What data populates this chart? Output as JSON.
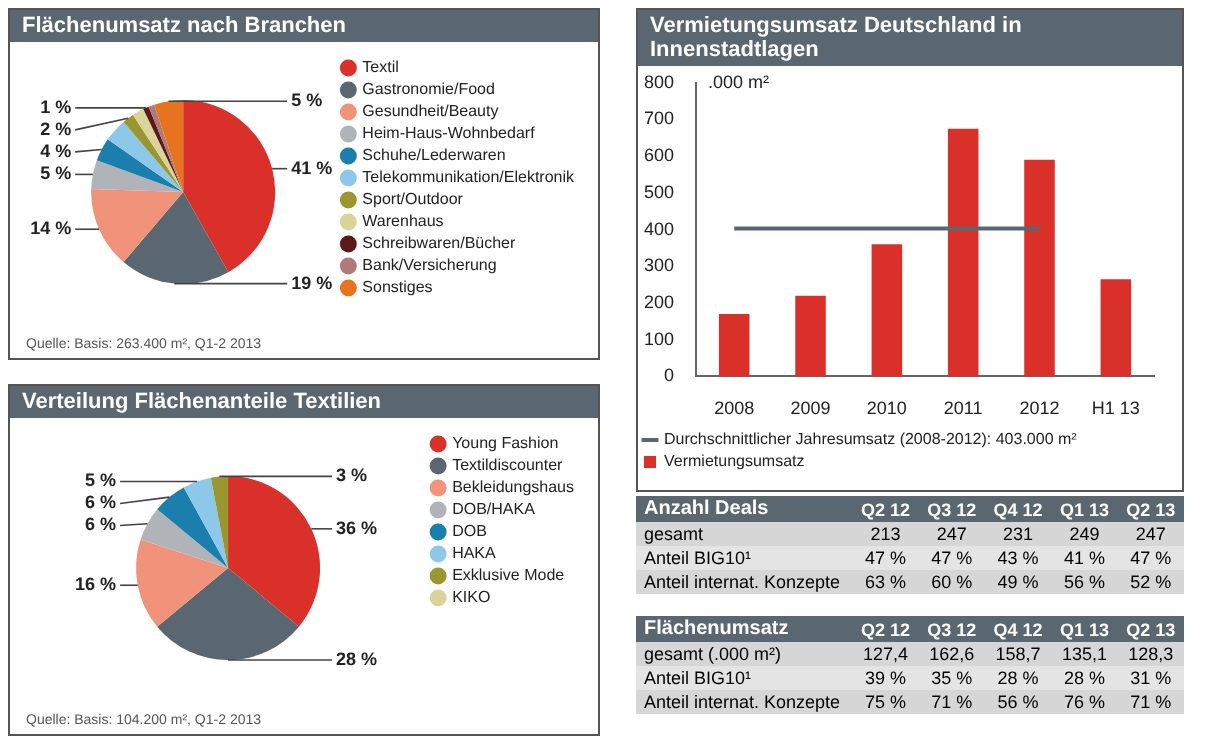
{
  "chart_data": [
    {
      "type": "pie",
      "title": "Flächenumsatz nach Branchen",
      "categories": [
        "Textil",
        "Gastronomie/Food",
        "Gesundheit/Beauty",
        "Heim-Haus-Wohnbedarf",
        "Schuhe/Lederwaren",
        "Telekommunikation/Elektronik",
        "Sport/Outdoor",
        "Warenhaus",
        "Schreibwaren/Bücher",
        "Bank/Versicherung",
        "Sonstiges"
      ],
      "values": [
        41,
        19,
        14,
        5,
        4,
        4,
        2,
        2,
        1,
        1,
        5
      ],
      "value_labels": [
        "41 %",
        "19 %",
        "14 %",
        "5 %",
        "4 %",
        null,
        "2 %",
        null,
        "1 %",
        null,
        "5 %"
      ],
      "colors": [
        "#d9302a",
        "#5a6670",
        "#f0937a",
        "#b0b4b8",
        "#1b7fae",
        "#8ec8e8",
        "#9a9630",
        "#d8d49a",
        "#5a1a1a",
        "#b07a78",
        "#e8731f"
      ],
      "legend": "right",
      "annotations": [
        "Quelle: Basis: 263.400 m², Q1-2 2013"
      ]
    },
    {
      "type": "pie",
      "title": "Verteilung Flächenanteile Textilien",
      "categories": [
        "Young Fashion",
        "Textildiscounter",
        "Bekleidungshaus",
        "DOB/HAKA",
        "DOB",
        "HAKA",
        "Exklusive Mode",
        "KIKO"
      ],
      "values": [
        36,
        28,
        16,
        6,
        6,
        5,
        3,
        null
      ],
      "value_labels": [
        "36 %",
        "28 %",
        "16 %",
        "6 %",
        "6 %",
        "5 %",
        "3 %",
        null
      ],
      "colors": [
        "#d9302a",
        "#5a6670",
        "#f0937a",
        "#b0b4b8",
        "#1b7fae",
        "#8ec8e8",
        "#9a9630",
        "#d8d49a"
      ],
      "legend": "right",
      "annotations": [
        "Quelle: Basis: 104.200 m², Q1-2 2013"
      ]
    },
    {
      "type": "bar",
      "title": "Vermietungsumsatz Deutschland in Innenstadtlagen",
      "ylabel": ".000 m²",
      "categories": [
        "2008",
        "2009",
        "2010",
        "2011",
        "2012",
        "H1 13"
      ],
      "series": [
        {
          "type": "bar",
          "name": "Vermietungsumsatz",
          "color": "#d9302a",
          "values": [
            170,
            220,
            360,
            675,
            590,
            265
          ]
        },
        {
          "type": "line",
          "name": "Durchschnittlicher Jahresumsatz (2008-2012): 403.000 m²",
          "color": "#5a6670",
          "values": [
            403,
            403,
            403,
            403,
            403,
            null
          ]
        }
      ],
      "ylim": [
        0,
        800
      ],
      "yticks": [
        0,
        100,
        200,
        300,
        400,
        500,
        600,
        700,
        800
      ],
      "grid": false,
      "legend": "bottom",
      "marker": "none"
    },
    {
      "type": "other",
      "title": "Anzahl Deals",
      "categories": [
        "Q2 12",
        "Q3 12",
        "Q4 12",
        "Q1 13",
        "Q2 13"
      ],
      "y_categories": [
        "gesamt",
        "Anteil BIG10¹",
        "Anteil internat. Konzepte"
      ],
      "cell_labels": [
        [
          "213",
          "247",
          "231",
          "249",
          "247"
        ],
        [
          "47 %",
          "47 %",
          "43 %",
          "41 %",
          "47 %"
        ],
        [
          "63 %",
          "60 %",
          "49 %",
          "56 %",
          "52 %"
        ]
      ]
    },
    {
      "type": "other",
      "title": "Flächenumsatz",
      "categories": [
        "Q2 12",
        "Q3 12",
        "Q4 12",
        "Q1 13",
        "Q2 13"
      ],
      "y_categories": [
        "gesamt (.000 m²)",
        "Anteil BIG10¹",
        "Anteil internat. Konzepte"
      ],
      "cell_labels": [
        [
          "127,4",
          "162,6",
          "158,7",
          "135,1",
          "128,3"
        ],
        [
          "39 %",
          "35 %",
          "28 %",
          "28 %",
          "31 %"
        ],
        [
          "75 %",
          "71 %",
          "56 %",
          "76 %",
          "71 %"
        ]
      ]
    }
  ]
}
